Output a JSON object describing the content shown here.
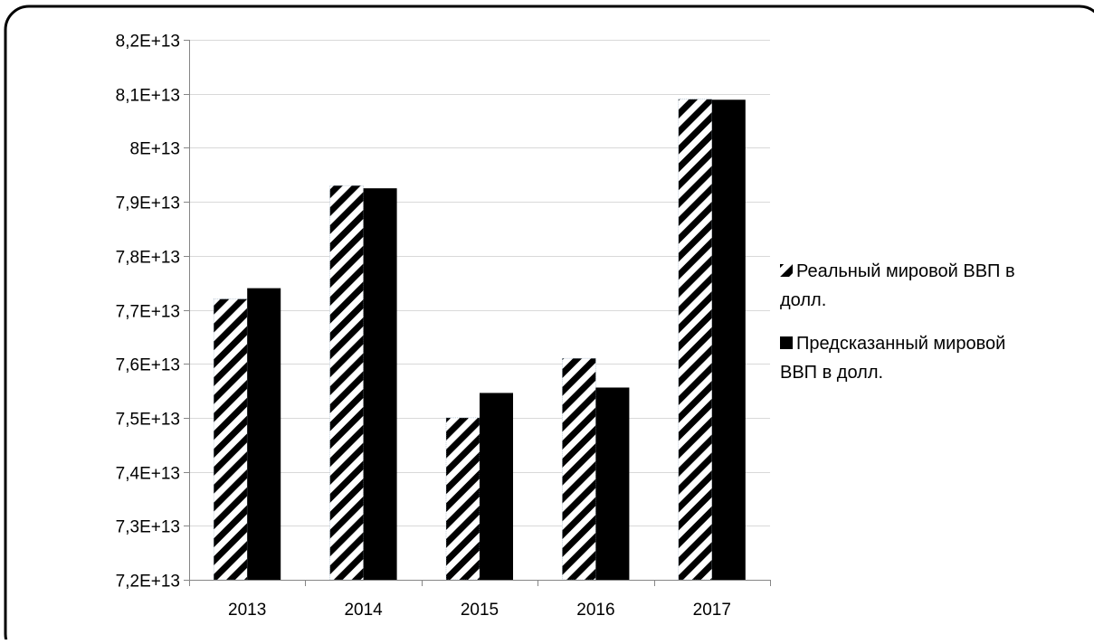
{
  "chart_data": {
    "type": "bar",
    "title": "",
    "xlabel": "",
    "ylabel": "",
    "categories": [
      "2013",
      "2014",
      "2015",
      "2016",
      "2017"
    ],
    "series": [
      {
        "name": "Реальный мировой ВВП в долл.",
        "pattern": "diagonal-stripes",
        "color": "#000000",
        "values": [
          77200000000000.0,
          79300000000000.0,
          75000000000000.0,
          76100000000000.0,
          80900000000000.0
        ]
      },
      {
        "name": "Предсказанный мировой ВВП в долл.",
        "pattern": "solid",
        "color": "#000000",
        "values": [
          77400000000000.0,
          79250000000000.0,
          75460000000000.0,
          75560000000000.0,
          80890000000000.0
        ]
      }
    ],
    "ylim": [
      72000000000000.0,
      82000000000000.0
    ],
    "yticks": [
      72000000000000.0,
      73000000000000.0,
      74000000000000.0,
      75000000000000.0,
      76000000000000.0,
      77000000000000.0,
      78000000000000.0,
      79000000000000.0,
      80000000000000.0,
      81000000000000.0,
      82000000000000.0
    ],
    "ytick_labels": [
      "7,2E+13",
      "7,3E+13",
      "7,4E+13",
      "7,5E+13",
      "7,6E+13",
      "7,7E+13",
      "7,8E+13",
      "7,9E+13",
      "8E+13",
      "8,1E+13",
      "8,2E+13"
    ],
    "grid": true,
    "legend": {
      "position": "right",
      "entries": [
        {
          "lines": [
            "Реальный мировой ВВП в",
            "долл."
          ]
        },
        {
          "lines": [
            "Предсказанный мировой",
            "ВВП в долл."
          ]
        }
      ]
    }
  }
}
